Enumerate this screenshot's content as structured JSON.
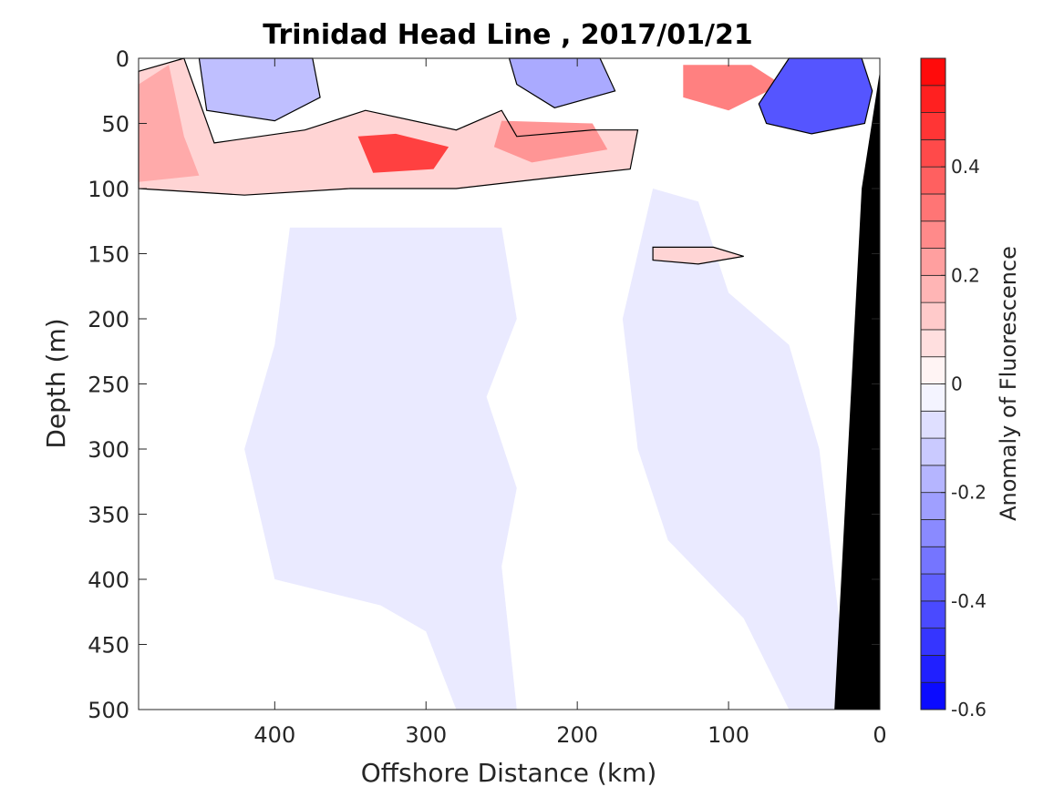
{
  "chart_data": {
    "type": "heatmap",
    "title": "Trinidad Head Line , 2017/01/21",
    "xlabel": "Offshore Distance (km)",
    "ylabel": "Depth (m)",
    "xlim": [
      490,
      0
    ],
    "ylim": [
      0,
      500
    ],
    "x_reversed": true,
    "y_reversed": true,
    "xticks": [
      400,
      300,
      200,
      100,
      0
    ],
    "yticks": [
      0,
      50,
      100,
      150,
      200,
      250,
      300,
      350,
      400,
      450,
      500
    ],
    "colorbar": {
      "label": "Anomaly of Fluorescence",
      "range": [
        -0.6,
        0.6
      ],
      "ticks": [
        0.4,
        0.2,
        0,
        -0.2,
        -0.4,
        -0.6
      ],
      "levels": [
        -0.6,
        -0.55,
        -0.5,
        -0.45,
        -0.4,
        -0.35,
        -0.3,
        -0.25,
        -0.2,
        -0.15,
        -0.1,
        -0.05,
        0,
        0.05,
        0.1,
        0.15,
        0.2,
        0.25,
        0.3,
        0.35,
        0.4,
        0.45,
        0.5,
        0.55,
        0.6
      ],
      "low_color": "#0000ff",
      "mid_color": "#ffffff",
      "high_color": "#ff0000"
    },
    "zero_contour_color": "#000000",
    "bathymetry_color": "#000000",
    "bathymetry": [
      {
        "x": 0,
        "y": 0
      },
      {
        "x": 0,
        "y": 500
      },
      {
        "x": 30,
        "y": 500
      },
      {
        "x": 12,
        "y": 100
      },
      {
        "x": 0,
        "y": 10
      }
    ],
    "features": [
      {
        "name": "surface-negative-offshore",
        "value": -0.15,
        "points": [
          [
            450,
            0
          ],
          [
            375,
            0
          ],
          [
            370,
            30
          ],
          [
            400,
            48
          ],
          [
            445,
            40
          ]
        ]
      },
      {
        "name": "surface-negative-mid",
        "value": -0.2,
        "points": [
          [
            245,
            0
          ],
          [
            185,
            0
          ],
          [
            175,
            25
          ],
          [
            215,
            38
          ],
          [
            240,
            20
          ]
        ]
      },
      {
        "name": "surface-negative-nearshore",
        "value": -0.4,
        "points": [
          [
            60,
            0
          ],
          [
            12,
            0
          ],
          [
            5,
            25
          ],
          [
            10,
            50
          ],
          [
            45,
            58
          ],
          [
            75,
            50
          ],
          [
            80,
            35
          ]
        ]
      },
      {
        "name": "deep-chl-max-west",
        "value": 0.2,
        "points": [
          [
            490,
            20
          ],
          [
            470,
            5
          ],
          [
            460,
            60
          ],
          [
            450,
            90
          ],
          [
            490,
            95
          ]
        ]
      },
      {
        "name": "deep-chl-max-core",
        "value": 0.45,
        "points": [
          [
            345,
            60
          ],
          [
            320,
            58
          ],
          [
            285,
            68
          ],
          [
            295,
            85
          ],
          [
            335,
            88
          ]
        ]
      },
      {
        "name": "deep-chl-max-east",
        "value": 0.25,
        "points": [
          [
            250,
            48
          ],
          [
            190,
            50
          ],
          [
            180,
            70
          ],
          [
            230,
            80
          ],
          [
            255,
            68
          ]
        ]
      },
      {
        "name": "nearshore-positive",
        "value": 0.3,
        "points": [
          [
            130,
            5
          ],
          [
            85,
            5
          ],
          [
            65,
            20
          ],
          [
            100,
            40
          ],
          [
            130,
            30
          ]
        ]
      },
      {
        "name": "positive-band",
        "value": 0.1,
        "points": [
          [
            490,
            10
          ],
          [
            460,
            0
          ],
          [
            440,
            65
          ],
          [
            380,
            55
          ],
          [
            340,
            40
          ],
          [
            280,
            55
          ],
          [
            250,
            40
          ],
          [
            240,
            60
          ],
          [
            190,
            55
          ],
          [
            160,
            55
          ],
          [
            165,
            85
          ],
          [
            220,
            92
          ],
          [
            280,
            100
          ],
          [
            350,
            100
          ],
          [
            420,
            105
          ],
          [
            490,
            100
          ]
        ]
      },
      {
        "name": "subsurface-patch-150",
        "value": 0.1,
        "points": [
          [
            150,
            145
          ],
          [
            110,
            145
          ],
          [
            90,
            152
          ],
          [
            120,
            158
          ],
          [
            150,
            155
          ]
        ]
      },
      {
        "name": "midwater-negative",
        "value": -0.05,
        "points": [
          [
            390,
            130
          ],
          [
            250,
            130
          ],
          [
            240,
            200
          ],
          [
            260,
            260
          ],
          [
            240,
            330
          ],
          [
            250,
            390
          ],
          [
            240,
            500
          ],
          [
            280,
            500
          ],
          [
            300,
            440
          ],
          [
            330,
            420
          ],
          [
            400,
            400
          ],
          [
            420,
            300
          ],
          [
            400,
            220
          ]
        ]
      },
      {
        "name": "midwater-negative-east",
        "value": -0.05,
        "points": [
          [
            150,
            100
          ],
          [
            120,
            110
          ],
          [
            100,
            180
          ],
          [
            60,
            220
          ],
          [
            40,
            300
          ],
          [
            30,
            400
          ],
          [
            20,
            500
          ],
          [
            60,
            500
          ],
          [
            90,
            430
          ],
          [
            140,
            370
          ],
          [
            160,
            300
          ],
          [
            170,
            200
          ]
        ]
      }
    ]
  }
}
